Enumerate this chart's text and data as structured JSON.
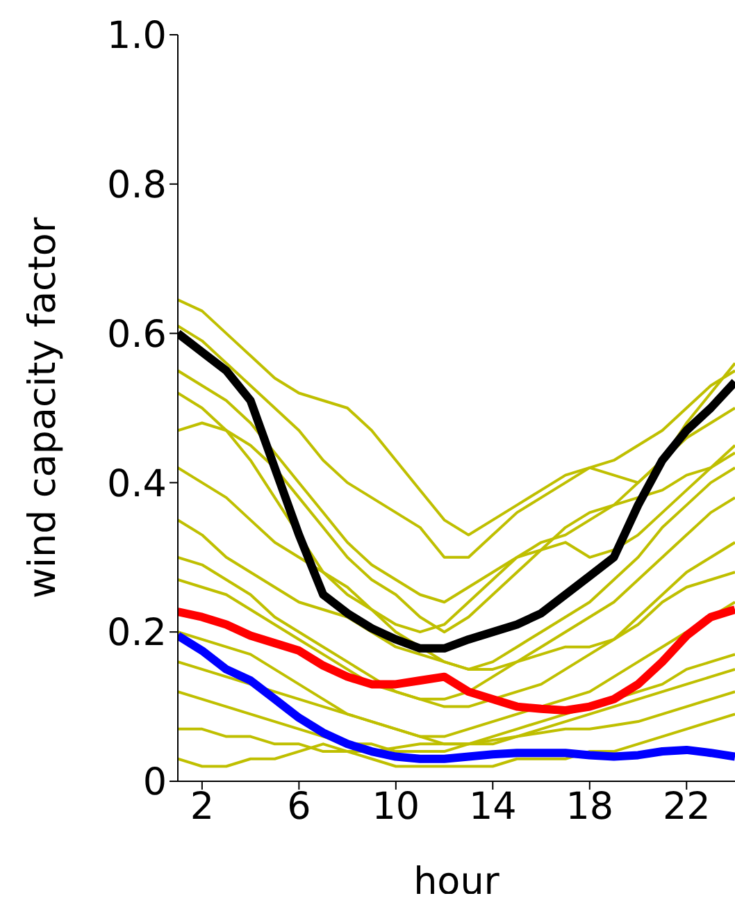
{
  "chart_data": {
    "type": "line",
    "xlabel": "hour",
    "ylabel": "wind capacity factor",
    "x": [
      1,
      2,
      3,
      4,
      5,
      6,
      7,
      8,
      9,
      10,
      11,
      12,
      13,
      14,
      15,
      16,
      17,
      18,
      19,
      20,
      21,
      22,
      23,
      24
    ],
    "xlim": [
      1,
      24
    ],
    "xticks": [
      2,
      6,
      10,
      14,
      18,
      22
    ],
    "ylim": [
      0,
      1
    ],
    "yticks": [
      0,
      0.2,
      0.4,
      0.6,
      0.8,
      {
        "value": 1,
        "label": "1.0"
      }
    ],
    "grid": false,
    "legend": false,
    "marker": "none",
    "line_style": "solid",
    "series": [
      {
        "color": "#bfbf00",
        "values": [
          0.645,
          0.63,
          0.6,
          0.57,
          0.54,
          0.52,
          0.51,
          0.5,
          0.47,
          0.43,
          0.39,
          0.35,
          0.33,
          0.35,
          0.37,
          0.39,
          0.41,
          0.42,
          0.41,
          0.4,
          0.43,
          0.48,
          0.52,
          0.56
        ]
      },
      {
        "color": "#bfbf00",
        "values": [
          0.61,
          0.59,
          0.56,
          0.53,
          0.5,
          0.47,
          0.43,
          0.4,
          0.38,
          0.36,
          0.34,
          0.3,
          0.3,
          0.33,
          0.36,
          0.38,
          0.4,
          0.42,
          0.43,
          0.45,
          0.47,
          0.5,
          0.53,
          0.55
        ]
      },
      {
        "color": "#bfbf00",
        "values": [
          0.55,
          0.53,
          0.51,
          0.48,
          0.44,
          0.4,
          0.36,
          0.32,
          0.29,
          0.27,
          0.25,
          0.24,
          0.26,
          0.28,
          0.3,
          0.32,
          0.33,
          0.35,
          0.37,
          0.4,
          0.43,
          0.46,
          0.48,
          0.5
        ]
      },
      {
        "color": "#bfbf00",
        "values": [
          0.47,
          0.48,
          0.47,
          0.45,
          0.42,
          0.38,
          0.34,
          0.3,
          0.27,
          0.25,
          0.22,
          0.2,
          0.22,
          0.25,
          0.28,
          0.31,
          0.34,
          0.36,
          0.37,
          0.38,
          0.39,
          0.41,
          0.42,
          0.44
        ]
      },
      {
        "color": "#bfbf00",
        "values": [
          0.52,
          0.5,
          0.47,
          0.43,
          0.38,
          0.33,
          0.28,
          0.25,
          0.23,
          0.21,
          0.2,
          0.21,
          0.24,
          0.27,
          0.3,
          0.31,
          0.32,
          0.3,
          0.31,
          0.33,
          0.36,
          0.39,
          0.42,
          0.45
        ]
      },
      {
        "color": "#bfbf00",
        "values": [
          0.42,
          0.4,
          0.38,
          0.35,
          0.32,
          0.3,
          0.28,
          0.26,
          0.23,
          0.2,
          0.18,
          0.16,
          0.15,
          0.16,
          0.18,
          0.2,
          0.22,
          0.24,
          0.27,
          0.3,
          0.34,
          0.37,
          0.4,
          0.42
        ]
      },
      {
        "color": "#bfbf00",
        "values": [
          0.35,
          0.33,
          0.3,
          0.28,
          0.26,
          0.24,
          0.23,
          0.22,
          0.2,
          0.18,
          0.17,
          0.16,
          0.15,
          0.15,
          0.16,
          0.18,
          0.2,
          0.22,
          0.24,
          0.27,
          0.3,
          0.33,
          0.36,
          0.38
        ]
      },
      {
        "color": "#bfbf00",
        "values": [
          0.3,
          0.29,
          0.27,
          0.25,
          0.22,
          0.2,
          0.18,
          0.16,
          0.14,
          0.12,
          0.11,
          0.1,
          0.1,
          0.11,
          0.12,
          0.13,
          0.15,
          0.17,
          0.19,
          0.22,
          0.25,
          0.28,
          0.3,
          0.32
        ]
      },
      {
        "color": "#bfbf00",
        "values": [
          0.27,
          0.26,
          0.25,
          0.23,
          0.21,
          0.19,
          0.17,
          0.15,
          0.13,
          0.12,
          0.11,
          0.11,
          0.12,
          0.14,
          0.16,
          0.17,
          0.18,
          0.18,
          0.19,
          0.21,
          0.24,
          0.26,
          0.27,
          0.28
        ]
      },
      {
        "color": "#bfbf00",
        "values": [
          0.2,
          0.19,
          0.18,
          0.17,
          0.15,
          0.13,
          0.11,
          0.09,
          0.08,
          0.07,
          0.06,
          0.06,
          0.07,
          0.08,
          0.09,
          0.1,
          0.11,
          0.12,
          0.14,
          0.16,
          0.18,
          0.2,
          0.22,
          0.24
        ]
      },
      {
        "color": "#bfbf00",
        "values": [
          0.16,
          0.15,
          0.14,
          0.13,
          0.12,
          0.11,
          0.1,
          0.09,
          0.08,
          0.07,
          0.06,
          0.05,
          0.05,
          0.06,
          0.07,
          0.08,
          0.09,
          0.1,
          0.11,
          0.12,
          0.13,
          0.15,
          0.16,
          0.17
        ]
      },
      {
        "color": "#bfbf00",
        "values": [
          0.12,
          0.11,
          0.1,
          0.09,
          0.08,
          0.07,
          0.06,
          0.05,
          0.05,
          0.04,
          0.04,
          0.04,
          0.05,
          0.05,
          0.06,
          0.07,
          0.08,
          0.09,
          0.1,
          0.11,
          0.12,
          0.13,
          0.14,
          0.15
        ]
      },
      {
        "color": "#bfbf00",
        "values": [
          0.07,
          0.07,
          0.06,
          0.06,
          0.05,
          0.05,
          0.04,
          0.04,
          0.04,
          0.045,
          0.05,
          0.05,
          0.05,
          0.055,
          0.06,
          0.065,
          0.07,
          0.07,
          0.075,
          0.08,
          0.09,
          0.1,
          0.11,
          0.12
        ]
      },
      {
        "color": "#bfbf00",
        "values": [
          0.03,
          0.02,
          0.02,
          0.03,
          0.03,
          0.04,
          0.05,
          0.04,
          0.03,
          0.02,
          0.02,
          0.02,
          0.02,
          0.02,
          0.03,
          0.03,
          0.03,
          0.04,
          0.04,
          0.05,
          0.06,
          0.07,
          0.08,
          0.09
        ]
      },
      {
        "color": "#0000ff",
        "values": [
          0.195,
          0.175,
          0.15,
          0.135,
          0.11,
          0.085,
          0.065,
          0.05,
          0.04,
          0.033,
          0.03,
          0.03,
          0.033,
          0.036,
          0.038,
          0.038,
          0.038,
          0.035,
          0.033,
          0.035,
          0.04,
          0.042,
          0.038,
          0.033
        ]
      },
      {
        "color": "#ff0000",
        "values": [
          0.227,
          0.22,
          0.21,
          0.195,
          0.185,
          0.175,
          0.155,
          0.14,
          0.13,
          0.13,
          0.135,
          0.14,
          0.12,
          0.11,
          0.1,
          0.097,
          0.095,
          0.1,
          0.11,
          0.13,
          0.16,
          0.195,
          0.22,
          0.23
        ]
      },
      {
        "color": "#000000",
        "values": [
          0.6,
          0.575,
          0.55,
          0.51,
          0.42,
          0.33,
          0.25,
          0.225,
          0.205,
          0.19,
          0.178,
          0.178,
          0.19,
          0.2,
          0.21,
          0.225,
          0.25,
          0.275,
          0.3,
          0.37,
          0.43,
          0.47,
          0.5,
          0.535
        ]
      }
    ]
  }
}
